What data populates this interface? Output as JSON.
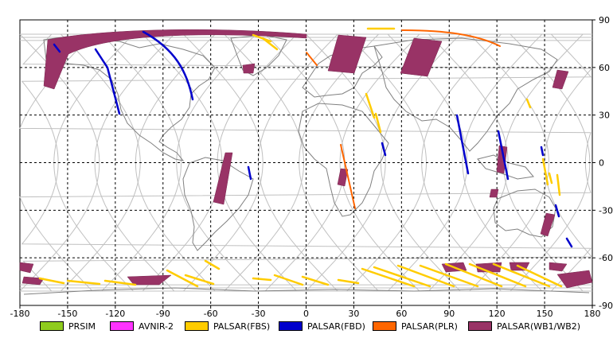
{
  "map": {
    "x_ticks": [
      "-180",
      "-150",
      "-120",
      "-90",
      "-60",
      "-30",
      "0",
      "30",
      "60",
      "90",
      "120",
      "150",
      "180"
    ],
    "y_ticks": [
      "90",
      "60",
      "30",
      "0",
      "-30",
      "-60",
      "-90"
    ],
    "lon_range": [
      -180,
      180
    ],
    "lat_range": [
      -90,
      90
    ],
    "grid": "dashed"
  },
  "legend": [
    {
      "label": "PRSIM",
      "color": "#8fcc1e"
    },
    {
      "label": "AVNIR-2",
      "color": "#ff33ff"
    },
    {
      "label": "PALSAR(FBS)",
      "color": "#ffcc00"
    },
    {
      "label": "PALSAR(FBD)",
      "color": "#0000cc"
    },
    {
      "label": "PALSAR(PLR)",
      "color": "#ff6600"
    },
    {
      "label": "PALSAR(WB1/WB2)",
      "color": "#993366"
    }
  ],
  "colors": {
    "coastline": "#808080",
    "orbit": "#bbbbbb",
    "fbs": "#ffcc00",
    "fbd": "#0000cc",
    "plr": "#ff6600",
    "wb": "#993366"
  }
}
